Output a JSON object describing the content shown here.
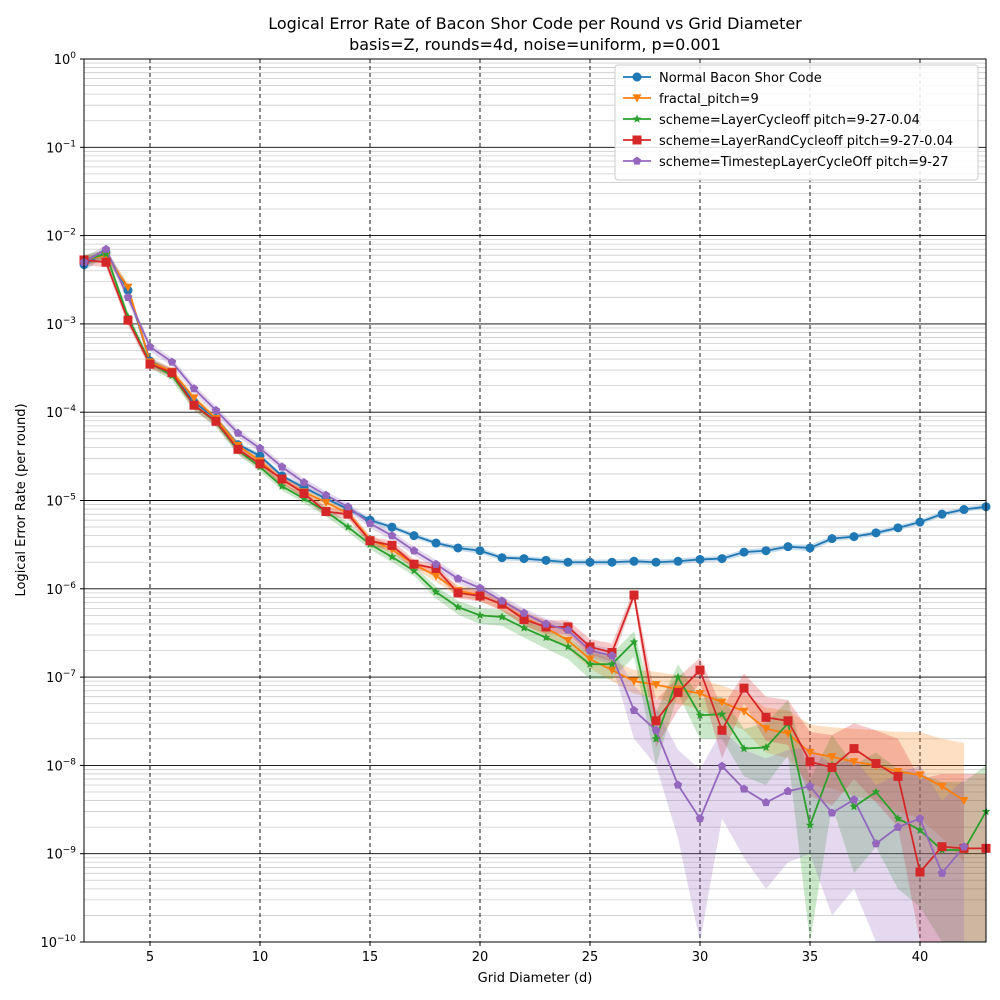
{
  "chart_data": {
    "type": "line",
    "title": "Logical Error Rate of Bacon Shor Code per Round vs Grid Diameter",
    "subtitle": "basis=Z, rounds=4d, noise=uniform, p=0.001",
    "xlabel": "Grid Diameter (d)",
    "ylabel": "Logical Error Rate (per round)",
    "xlim": [
      2,
      43
    ],
    "ylim": [
      1e-10,
      1
    ],
    "yscale": "log",
    "grid": true,
    "legend_position": "upper right",
    "x_ticks": [
      5,
      10,
      15,
      20,
      25,
      30,
      35,
      40
    ],
    "x_tick_labels": [
      "5",
      "10",
      "15",
      "20",
      "25",
      "30",
      "35",
      "40"
    ],
    "y_ticks": [
      1e-10,
      1e-09,
      1e-08,
      1e-07,
      1e-06,
      1e-05,
      0.0001,
      0.001,
      0.01,
      0.1,
      1
    ],
    "y_tick_labels": [
      {
        "base": "10",
        "exp": "−10"
      },
      {
        "base": "10",
        "exp": "−9"
      },
      {
        "base": "10",
        "exp": "−8"
      },
      {
        "base": "10",
        "exp": "−7"
      },
      {
        "base": "10",
        "exp": "−6"
      },
      {
        "base": "10",
        "exp": "−5"
      },
      {
        "base": "10",
        "exp": "−4"
      },
      {
        "base": "10",
        "exp": "−3"
      },
      {
        "base": "10",
        "exp": "−2"
      },
      {
        "base": "10",
        "exp": "−1"
      },
      {
        "base": "10",
        "exp": "0"
      }
    ],
    "series": [
      {
        "name": "Normal Bacon Shor Code",
        "color": "#1f77b4",
        "marker": "circle",
        "x": [
          2,
          3,
          4,
          5,
          6,
          7,
          8,
          9,
          10,
          11,
          12,
          13,
          14,
          15,
          16,
          17,
          18,
          19,
          20,
          21,
          22,
          23,
          24,
          25,
          26,
          27,
          28,
          29,
          30,
          31,
          32,
          33,
          34,
          35,
          36,
          37,
          38,
          39,
          40,
          41,
          42,
          43
        ],
        "y": [
          0.0047,
          0.0065,
          0.0024,
          0.00038,
          0.00028,
          0.00013,
          8.5e-05,
          4.3e-05,
          3.2e-05,
          1.9e-05,
          1.4e-05,
          1.05e-05,
          8e-06,
          6e-06,
          5e-06,
          4e-06,
          3.3e-06,
          2.9e-06,
          2.7e-06,
          2.25e-06,
          2.2e-06,
          2.1e-06,
          2e-06,
          2e-06,
          2e-06,
          2.05e-06,
          2e-06,
          2.05e-06,
          2.15e-06,
          2.2e-06,
          2.6e-06,
          2.7e-06,
          3e-06,
          2.9e-06,
          3.7e-06,
          3.9e-06,
          4.3e-06,
          4.9e-06,
          5.7e-06,
          7e-06,
          7.9e-06,
          8.5e-06
        ],
        "band_lo": [
          0.004,
          0.0058,
          0.0021,
          0.00034,
          0.00025,
          0.00012,
          7.8e-05,
          4e-05,
          3e-05,
          1.8e-05,
          1.3e-05,
          9.8e-06,
          7.5e-06,
          5.6e-06,
          4.7e-06,
          3.75e-06,
          3.1e-06,
          2.7e-06,
          2.5e-06,
          2.1e-06,
          2.05e-06,
          1.95e-06,
          1.85e-06,
          1.85e-06,
          1.85e-06,
          1.9e-06,
          1.85e-06,
          1.9e-06,
          2e-06,
          2.05e-06,
          2.4e-06,
          2.5e-06,
          2.8e-06,
          2.65e-06,
          3.45e-06,
          3.65e-06,
          4e-06,
          4.6e-06,
          5.3e-06,
          6.6e-06,
          7.4e-06,
          8e-06
        ],
        "band_hi": [
          0.0054,
          0.0072,
          0.0027,
          0.00042,
          0.00031,
          0.00014,
          9.2e-05,
          4.6e-05,
          3.4e-05,
          2e-05,
          1.5e-05,
          1.12e-05,
          8.5e-06,
          6.4e-06,
          5.3e-06,
          4.25e-06,
          3.5e-06,
          3.1e-06,
          2.9e-06,
          2.4e-06,
          2.35e-06,
          2.25e-06,
          2.15e-06,
          2.15e-06,
          2.15e-06,
          2.2e-06,
          2.15e-06,
          2.2e-06,
          2.3e-06,
          2.35e-06,
          2.8e-06,
          2.9e-06,
          3.2e-06,
          3.15e-06,
          3.95e-06,
          4.15e-06,
          4.6e-06,
          5.2e-06,
          6.1e-06,
          7.4e-06,
          8.4e-06,
          9.2e-06
        ]
      },
      {
        "name": "fractal_pitch=9",
        "color": "#ff7f0e",
        "marker": "triangle-down",
        "x": [
          2,
          3,
          4,
          5,
          6,
          7,
          8,
          9,
          10,
          11,
          12,
          13,
          14,
          15,
          16,
          17,
          18,
          19,
          20,
          21,
          22,
          23,
          24,
          25,
          26,
          27,
          28,
          29,
          30,
          31,
          32,
          33,
          34,
          35,
          36,
          37,
          38,
          39,
          40,
          41,
          42
        ],
        "y": [
          0.0053,
          0.006,
          0.0026,
          0.00037,
          0.00029,
          0.000145,
          8.5e-05,
          4.2e-05,
          2.8e-05,
          1.7e-05,
          1.25e-05,
          9.5e-06,
          7.2e-06,
          3.6e-06,
          2.8e-06,
          1.9e-06,
          1.4e-06,
          9.5e-07,
          8.5e-07,
          6.6e-07,
          4.7e-07,
          3.6e-07,
          2.6e-07,
          1.6e-07,
          1.2e-07,
          9e-08,
          8.2e-08,
          7.3e-08,
          6.5e-08,
          5.2e-08,
          4.1e-08,
          2.6e-08,
          2.3e-08,
          1.4e-08,
          1.25e-08,
          1.1e-08,
          1e-08,
          8.5e-09,
          7.8e-09,
          5.8e-09,
          4e-09
        ],
        "band_lo": [
          0.0046,
          0.0053,
          0.0023,
          0.00033,
          0.00026,
          0.00013,
          7.8e-05,
          3.8e-05,
          2.5e-05,
          1.5e-05,
          1.1e-05,
          8.5e-06,
          6.4e-06,
          3.2e-06,
          2.5e-06,
          1.7e-06,
          1.2e-06,
          8.2e-07,
          7.3e-07,
          5.6e-07,
          3.9e-07,
          2.9e-07,
          2.1e-07,
          1.25e-07,
          9e-08,
          6.5e-08,
          5.7e-08,
          5e-08,
          4.3e-08,
          3.3e-08,
          2.5e-08,
          1.4e-08,
          1.2e-08,
          6e-09,
          5.5e-09,
          4.5e-09,
          4e-09,
          3e-09,
          2.5e-09,
          1.5e-09,
          8e-10
        ],
        "band_hi": [
          0.006,
          0.0068,
          0.0029,
          0.00041,
          0.00032,
          0.00016,
          9.2e-05,
          4.6e-05,
          3.1e-05,
          1.9e-05,
          1.4e-05,
          1.05e-05,
          8e-06,
          4e-06,
          3.1e-06,
          2.1e-06,
          1.6e-06,
          1.1e-06,
          9.8e-07,
          7.7e-07,
          5.6e-07,
          4.4e-07,
          3.2e-07,
          2e-07,
          1.55e-07,
          1.2e-07,
          1.15e-07,
          1.05e-07,
          9.5e-08,
          8e-08,
          6.5e-08,
          4.5e-08,
          4.2e-08,
          2.9e-08,
          2.7e-08,
          2.6e-08,
          2.5e-08,
          2.4e-08,
          2.4e-08,
          2e-08,
          1.8e-08
        ]
      },
      {
        "name": "scheme=LayerCycleoff pitch=9-27-0.04",
        "color": "#2ca02c",
        "marker": "star",
        "x": [
          2,
          3,
          4,
          5,
          6,
          7,
          8,
          9,
          10,
          11,
          12,
          13,
          14,
          15,
          16,
          17,
          18,
          19,
          20,
          21,
          22,
          23,
          24,
          25,
          26,
          27,
          28,
          29,
          30,
          31,
          32,
          33,
          34,
          35,
          36,
          37,
          38,
          39,
          40,
          41,
          42,
          43
        ],
        "y": [
          0.0053,
          0.0062,
          0.0012,
          0.00036,
          0.00026,
          0.00012,
          7.7e-05,
          3.7e-05,
          2.4e-05,
          1.45e-05,
          1.05e-05,
          7.5e-06,
          5e-06,
          3.2e-06,
          2.3e-06,
          1.6e-06,
          9.2e-07,
          6.2e-07,
          5e-07,
          4.8e-07,
          3.6e-07,
          2.8e-07,
          2.2e-07,
          1.4e-07,
          1.4e-07,
          2.5e-07,
          2e-08,
          1e-07,
          3.7e-08,
          3.8e-08,
          1.55e-08,
          1.6e-08,
          3e-08,
          2.1e-09,
          1e-08,
          3.4e-09,
          5e-09,
          2.5e-09,
          1.85e-09,
          1.1e-09,
          1.1e-09,
          3e-09
        ],
        "band_lo": [
          0.0046,
          0.0054,
          0.00105,
          0.00032,
          0.00023,
          0.000105,
          6.8e-05,
          3.3e-05,
          2.15e-05,
          1.3e-05,
          9.3e-06,
          6.6e-06,
          4.4e-06,
          2.8e-06,
          2e-06,
          1.4e-06,
          7.8e-07,
          5.1e-07,
          4e-07,
          3.8e-07,
          2.8e-07,
          2.1e-07,
          1.6e-07,
          9.5e-08,
          9.5e-08,
          1.7e-07,
          1e-08,
          6.5e-08,
          2e-08,
          2e-08,
          7.5e-09,
          6e-09,
          1.3e-08,
          1e-10,
          3.5e-09,
          6e-10,
          1.2e-09,
          4e-10,
          2.5e-10,
          1e-10,
          1e-10,
          1e-10
        ],
        "band_hi": [
          0.006,
          0.007,
          0.00135,
          0.0004,
          0.00029,
          0.000135,
          8.6e-05,
          4.1e-05,
          2.65e-05,
          1.6e-05,
          1.17e-05,
          8.4e-06,
          5.6e-06,
          3.6e-06,
          2.6e-06,
          1.8e-06,
          1.07e-06,
          7.3e-07,
          6e-07,
          5.8e-07,
          4.4e-07,
          3.5e-07,
          2.8e-07,
          1.85e-07,
          1.85e-07,
          3.3e-07,
          4e-08,
          1.4e-07,
          5.8e-08,
          6e-08,
          2.6e-08,
          3e-08,
          5.5e-08,
          7e-09,
          2.2e-08,
          1e-08,
          1.4e-08,
          9e-09,
          8e-09,
          6.5e-09,
          6.5e-09,
          1e-08
        ]
      },
      {
        "name": "scheme=LayerRandCycleoff pitch=9-27-0.04",
        "color": "#d62728",
        "marker": "square",
        "x": [
          2,
          3,
          4,
          5,
          6,
          7,
          8,
          9,
          10,
          11,
          12,
          13,
          14,
          15,
          16,
          17,
          18,
          19,
          20,
          21,
          22,
          23,
          24,
          25,
          26,
          27,
          28,
          29,
          30,
          31,
          32,
          33,
          34,
          35,
          36,
          37,
          38,
          39,
          40,
          41,
          42,
          43
        ],
        "y": [
          0.0053,
          0.005,
          0.0011,
          0.00035,
          0.00028,
          0.00012,
          7.9e-05,
          3.8e-05,
          2.6e-05,
          1.75e-05,
          1.2e-05,
          7.5e-06,
          7e-06,
          3.5e-06,
          3.1e-06,
          1.9e-06,
          1.7e-06,
          9e-07,
          8.3e-07,
          6.7e-07,
          4.5e-07,
          3.7e-07,
          3.7e-07,
          2.2e-07,
          1.9e-07,
          8.5e-07,
          3.2e-08,
          6.7e-08,
          1.2e-07,
          2.5e-08,
          7.5e-08,
          3.5e-08,
          3.2e-08,
          1.1e-08,
          9.5e-09,
          1.55e-08,
          1.05e-08,
          7.5e-09,
          6.2e-10,
          1.2e-09,
          1.15e-09,
          1.15e-09
        ],
        "band_lo": [
          0.0046,
          0.0044,
          0.00096,
          0.00031,
          0.00025,
          0.000105,
          7e-05,
          3.4e-05,
          2.3e-05,
          1.55e-05,
          1.05e-05,
          6.6e-06,
          6.2e-06,
          3.1e-06,
          2.7e-06,
          1.65e-06,
          1.5e-06,
          7.8e-07,
          7.2e-07,
          5.7e-07,
          3.8e-07,
          3.1e-07,
          3.1e-07,
          1.8e-07,
          1.5e-07,
          7.5e-07,
          1.6e-08,
          4.2e-08,
          8.5e-08,
          1.2e-08,
          5e-08,
          1.9e-08,
          1.7e-08,
          4.5e-09,
          3.5e-09,
          7e-09,
          3.8e-09,
          2e-09,
          1e-10,
          1e-10,
          1e-10,
          1e-10
        ],
        "band_hi": [
          0.006,
          0.0057,
          0.00125,
          0.00039,
          0.00031,
          0.000135,
          8.8e-05,
          4.2e-05,
          2.9e-05,
          1.95e-05,
          1.35e-05,
          8.4e-06,
          7.8e-06,
          3.9e-06,
          3.5e-06,
          2.15e-06,
          1.9e-06,
          1.02e-06,
          9.4e-07,
          7.7e-07,
          5.3e-07,
          4.4e-07,
          4.4e-07,
          2.7e-07,
          2.4e-07,
          1e-06,
          5.5e-08,
          1e-07,
          1.65e-07,
          4.5e-08,
          1.1e-07,
          6e-08,
          5.5e-08,
          2.4e-08,
          2.2e-08,
          3e-08,
          2.5e-08,
          2e-08,
          7e-09,
          8e-09,
          8e-09,
          8e-09
        ]
      },
      {
        "name": "scheme=TimestepLayerCycleOff pitch=9-27",
        "color": "#9467bd",
        "marker": "pentagon",
        "x": [
          2,
          3,
          4,
          5,
          6,
          7,
          8,
          9,
          10,
          11,
          12,
          13,
          14,
          15,
          16,
          17,
          18,
          19,
          20,
          21,
          22,
          23,
          24,
          25,
          26,
          27,
          28,
          29,
          30,
          31,
          32,
          33,
          34,
          35,
          36,
          37,
          38,
          39,
          40,
          41,
          42
        ],
        "y": [
          0.005,
          0.007,
          0.002,
          0.00055,
          0.00037,
          0.000185,
          0.000105,
          5.8e-05,
          3.9e-05,
          2.4e-05,
          1.6e-05,
          1.15e-05,
          8.5e-06,
          5.5e-06,
          4e-06,
          2.7e-06,
          1.9e-06,
          1.3e-06,
          1.02e-06,
          7.3e-07,
          5.3e-07,
          4e-07,
          3.4e-07,
          2e-07,
          1.75e-07,
          4.2e-08,
          2.5e-08,
          6e-09,
          2.5e-09,
          9.8e-09,
          5.4e-09,
          3.8e-09,
          5.1e-09,
          5.8e-09,
          2.9e-09,
          4.1e-09,
          1.3e-09,
          2e-09,
          2.5e-09,
          6e-10,
          1.2e-09
        ],
        "band_lo": [
          0.0044,
          0.0062,
          0.00175,
          0.00049,
          0.00033,
          0.000165,
          9.3e-05,
          5.2e-05,
          3.5e-05,
          2.15e-05,
          1.43e-05,
          1.03e-05,
          7.6e-06,
          4.9e-06,
          3.55e-06,
          2.4e-06,
          1.68e-06,
          1.15e-06,
          8.9e-07,
          6.4e-07,
          4.6e-07,
          3.4e-07,
          2.9e-07,
          1.65e-07,
          1.4e-07,
          2e-08,
          1e-08,
          1.5e-09,
          1e-10,
          2.5e-09,
          9e-10,
          4e-10,
          8e-10,
          1e-09,
          2e-10,
          4e-10,
          1e-10,
          1e-10,
          1e-10,
          1e-10,
          1e-10
        ],
        "band_hi": [
          0.0057,
          0.0078,
          0.00225,
          0.00061,
          0.00041,
          0.000205,
          0.000117,
          6.4e-05,
          4.3e-05,
          2.65e-05,
          1.78e-05,
          1.27e-05,
          9.4e-06,
          6.1e-06,
          4.45e-06,
          3e-06,
          2.12e-06,
          1.45e-06,
          1.15e-06,
          8.2e-07,
          6e-07,
          4.6e-07,
          3.9e-07,
          2.35e-07,
          2.1e-07,
          8e-08,
          4.5e-08,
          1.5e-08,
          9e-09,
          2.5e-08,
          1.5e-08,
          1.2e-08,
          1.5e-08,
          1.6e-08,
          1e-08,
          1.2e-08,
          6e-09,
          8e-09,
          1e-08,
          4e-09,
          7e-09
        ]
      }
    ]
  }
}
